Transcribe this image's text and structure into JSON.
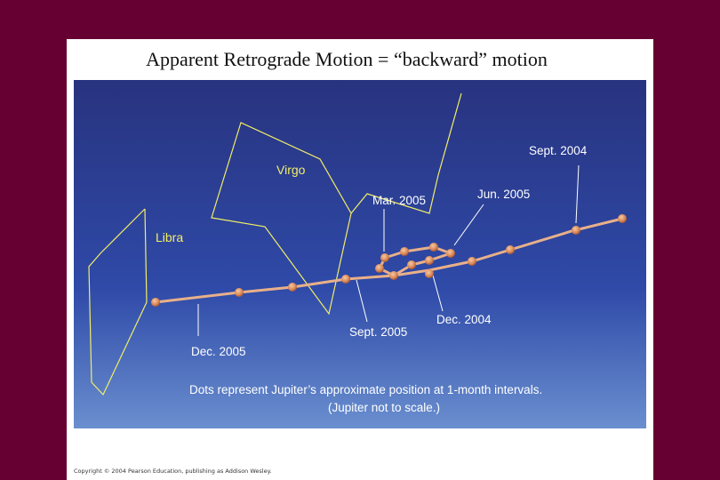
{
  "slide": {
    "title": "Apparent Retrograde Motion = “backward” motion",
    "background_color": "#660033"
  },
  "figure": {
    "sky_gradient": [
      "#28337f",
      "#2f4aa8",
      "#6a8fcf"
    ],
    "constellation_line_color": "#f2ee66",
    "path_color": "#e8b08a",
    "dot_color": "#c86a40",
    "constellations": {
      "virgo_label": "Virgo",
      "libra_label": "Libra"
    },
    "date_labels": {
      "sept_2004": "Sept. 2004",
      "jun_2005": "Jun. 2005",
      "mar_2005": "Mar. 2005",
      "dec_2004": "Dec. 2004",
      "sept_2005": "Sept. 2005",
      "dec_2005": "Dec. 2005"
    },
    "caption_line1": "Dots represent Jupiter’s approximate position at 1-month intervals.",
    "caption_line2": "(Jupiter not to scale.)",
    "jupiter_position_dots": 17
  },
  "copyright": "Copyright © 2004 Pearson Education, publishing as Addison Wesley."
}
